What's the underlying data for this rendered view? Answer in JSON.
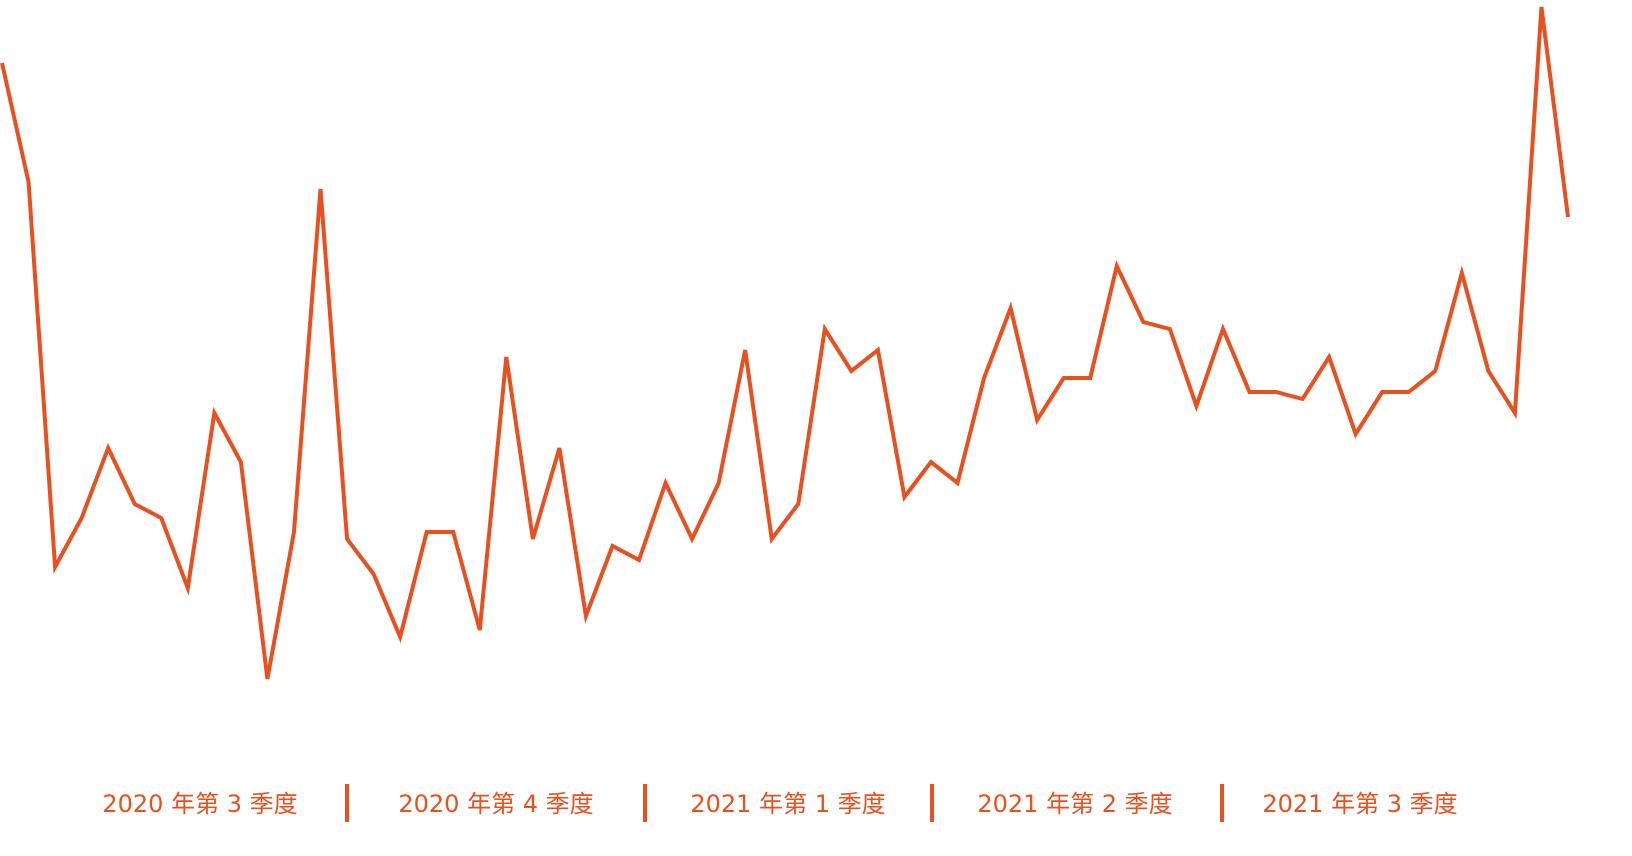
{
  "chart_data": {
    "type": "line",
    "categories": [
      null,
      null,
      null,
      null,
      null,
      null,
      null,
      null,
      null,
      null,
      null,
      null,
      null,
      null,
      null,
      null,
      null,
      null,
      null,
      null,
      null,
      null,
      null,
      null,
      null,
      null,
      null,
      null,
      null,
      null,
      null,
      null,
      null,
      null,
      null,
      null,
      null,
      null,
      null,
      null,
      null,
      null,
      null,
      null,
      null,
      null,
      null,
      null,
      null,
      null,
      null,
      null,
      null,
      null,
      null,
      null,
      null,
      null,
      null,
      null
    ],
    "series": [
      {
        "color": "#e8501f",
        "values": [
          91,
          74,
          19,
          26,
          36,
          28,
          26,
          16,
          41,
          34,
          3,
          24,
          73,
          23,
          18,
          9,
          24,
          24,
          10,
          49,
          23,
          36,
          12,
          22,
          20,
          31,
          23,
          31,
          50,
          23,
          28,
          53,
          47,
          50,
          29,
          34,
          31,
          46,
          56,
          40,
          46,
          46,
          62,
          54,
          53,
          42,
          53,
          44,
          44,
          43,
          49,
          38,
          44,
          44,
          47,
          61,
          47,
          41,
          99,
          69
        ]
      }
    ],
    "ylim": [
      0,
      100
    ],
    "period_labels": [
      "2020 年第 3 季度",
      "2020 年第 4 季度",
      "2021 年第 1 季度",
      "2021 年第 2 季度",
      "2021 年第 3 季度"
    ]
  }
}
